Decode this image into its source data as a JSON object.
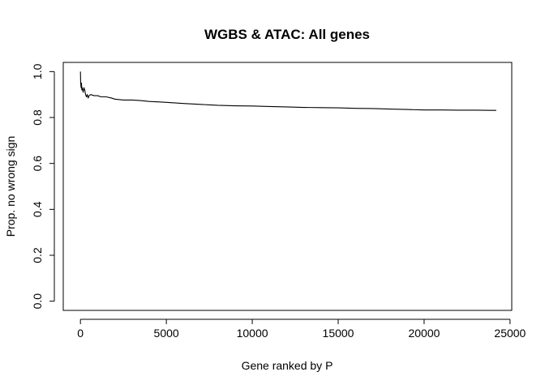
{
  "chart_data": {
    "type": "line",
    "title": "WGBS & ATAC: All genes",
    "xlabel": "Gene ranked by P",
    "ylabel": "Prop. no wrong sign",
    "xlim": [
      -1000,
      25100
    ],
    "ylim": [
      -0.04,
      1.04
    ],
    "xticks": [
      0,
      5000,
      10000,
      15000,
      20000,
      25000
    ],
    "xtick_labels": [
      "0",
      "5000",
      "10000",
      "15000",
      "20000",
      "25000"
    ],
    "yticks": [
      0.0,
      0.2,
      0.4,
      0.6,
      0.8,
      1.0
    ],
    "ytick_labels": [
      "0.0",
      "0.2",
      "0.4",
      "0.6",
      "0.8",
      "1.0"
    ],
    "grid": false,
    "box": true,
    "series_color": "#000000",
    "series": [
      {
        "x": [
          1,
          10,
          25,
          40,
          60,
          80,
          100,
          130,
          160,
          200,
          250,
          300,
          350,
          400,
          450,
          500,
          600,
          800,
          1000,
          1200,
          1500,
          1800,
          2000,
          2500,
          3000,
          3500,
          4000,
          4500,
          5000,
          6000,
          7000,
          8000,
          9000,
          10000,
          11000,
          12000,
          13000,
          14000,
          15000,
          16000,
          17000,
          18000,
          19000,
          20000,
          21000,
          22000,
          23000,
          24000,
          24200
        ],
        "y": [
          1.0,
          0.96,
          0.94,
          0.93,
          0.95,
          0.92,
          0.93,
          0.92,
          0.91,
          0.93,
          0.92,
          0.9,
          0.89,
          0.9,
          0.885,
          0.895,
          0.9,
          0.895,
          0.895,
          0.89,
          0.89,
          0.885,
          0.88,
          0.876,
          0.876,
          0.874,
          0.87,
          0.868,
          0.866,
          0.861,
          0.857,
          0.853,
          0.851,
          0.85,
          0.848,
          0.846,
          0.844,
          0.843,
          0.842,
          0.84,
          0.839,
          0.837,
          0.835,
          0.833,
          0.833,
          0.832,
          0.832,
          0.831,
          0.831
        ]
      }
    ]
  }
}
